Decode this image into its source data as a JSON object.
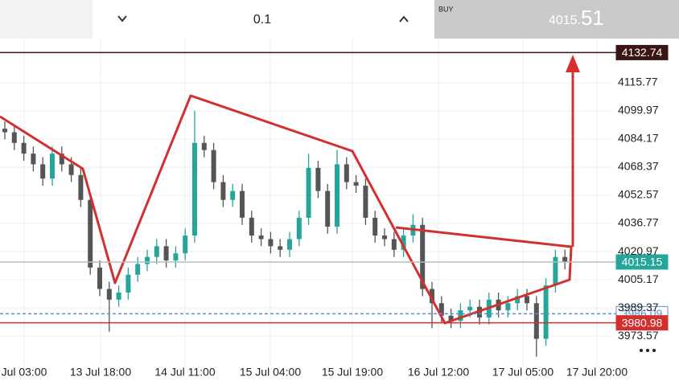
{
  "toolbar": {
    "volume": "0.1",
    "buy_label": "BUY",
    "price_main": "4015.",
    "price_pips": "51"
  },
  "chart_data": {
    "type": "candlestick",
    "up_color": "#26a69a",
    "down_color": "#555555",
    "grid": true,
    "ylim": [
      3956.9,
      4140.6
    ],
    "yticks": [
      4115.77,
      4099.97,
      4084.17,
      4068.37,
      4052.57,
      4036.77,
      4020.97,
      4005.17,
      3989.37,
      3973.57
    ],
    "time_labels": [
      "Jul 03:00",
      "13 Jul 18:00",
      "14 Jul 11:00",
      "15 Jul 04:00",
      "15 Jul 19:00",
      "16 Jul 12:00",
      "17 Jul 05:00",
      "17 Jul 20:00"
    ],
    "open": [
      4090,
      4088,
      4082,
      4076,
      4070,
      4062,
      4076,
      4070,
      4064,
      4050,
      4012,
      4000,
      3994,
      3998,
      4008,
      4014,
      4018,
      4024,
      4016,
      4020,
      4030,
      4082,
      4078,
      4060,
      4050,
      4055,
      4040,
      4030,
      4028,
      4024,
      4022,
      4028,
      4040,
      4068,
      4055,
      4035,
      4070,
      4060,
      4058,
      4040,
      4030,
      4028,
      4022,
      4030,
      4036,
      4000,
      3992,
      3985,
      3982,
      3988,
      3990,
      3984,
      3994,
      3988,
      3992,
      3996,
      3992,
      3972,
      4002,
      4018
    ],
    "high": [
      4094,
      4092,
      4086,
      4080,
      4074,
      4080,
      4080,
      4074,
      4068,
      4054,
      4016,
      4004,
      4002,
      4012,
      4018,
      4022,
      4028,
      4028,
      4024,
      4034,
      4100,
      4086,
      4082,
      4064,
      4059,
      4059,
      4044,
      4034,
      4032,
      4028,
      4032,
      4044,
      4076,
      4072,
      4059,
      4078,
      4074,
      4064,
      4062,
      4044,
      4034,
      4032,
      4034,
      4042,
      4040,
      4004,
      3996,
      3989,
      3992,
      3994,
      3994,
      3998,
      3998,
      3996,
      4000,
      4000,
      3996,
      4006,
      4022,
      4022
    ],
    "low": [
      4084,
      4078,
      4072,
      4066,
      4058,
      4058,
      4066,
      4060,
      4046,
      4008,
      3996,
      3976,
      3990,
      3994,
      4004,
      4010,
      4014,
      4012,
      4012,
      4016,
      4026,
      4074,
      4056,
      4046,
      4046,
      4036,
      4026,
      4024,
      4020,
      4018,
      4018,
      4024,
      4036,
      4051,
      4031,
      4031,
      4056,
      4054,
      4036,
      4026,
      4024,
      4018,
      4018,
      4026,
      3996,
      3978,
      3981,
      3978,
      3978,
      3984,
      3980,
      3980,
      3984,
      3984,
      3988,
      3988,
      3962,
      3968,
      3998,
      4011
    ],
    "close": [
      4088,
      4082,
      4076,
      4070,
      4062,
      4076,
      4070,
      4064,
      4050,
      4012,
      4000,
      3994,
      3998,
      4008,
      4014,
      4018,
      4024,
      4016,
      4020,
      4030,
      4082,
      4078,
      4060,
      4050,
      4055,
      4040,
      4030,
      4028,
      4024,
      4022,
      4028,
      4040,
      4068,
      4055,
      4035,
      4070,
      4060,
      4058,
      4040,
      4030,
      4028,
      4022,
      4030,
      4036,
      4000,
      3992,
      3985,
      3982,
      3988,
      3990,
      3984,
      3994,
      3988,
      3992,
      3996,
      3992,
      3972,
      4002,
      4018,
      4015.15
    ],
    "levels": [
      {
        "value": 4132.74,
        "color": "#3b1414",
        "text_color": "#ffffff",
        "dashed": false
      },
      {
        "value": 4015.15,
        "color": "#26a69a",
        "text_color": "#ffffff",
        "dashed": false
      },
      {
        "value": 3986.09,
        "color": "#5b8fd6",
        "text_color": "#5b8fd6",
        "dashed": true
      },
      {
        "value": 3980.98,
        "color": "#d32f2f",
        "text_color": "#ffffff",
        "dashed": false
      }
    ]
  }
}
